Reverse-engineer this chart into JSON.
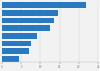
{
  "values": [
    22,
    14.5,
    13.5,
    12.5,
    9,
    7.5,
    7,
    4.5
  ],
  "bar_color": "#2979c2",
  "background_color": "#f2f2f2",
  "xlim": [
    0,
    25
  ],
  "bar_height": 0.75,
  "figsize": [
    1.0,
    0.71
  ],
  "dpi": 100
}
